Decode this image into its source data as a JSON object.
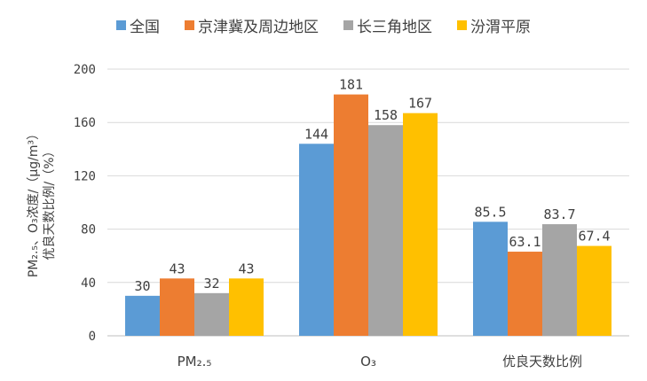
{
  "chart_data": {
    "type": "bar",
    "title": "",
    "xlabel": "",
    "ylabel_line1": "PM₂.₅、O₃浓度/（μg/m³）",
    "ylabel_line2": "优良天数比例/（%）",
    "categories": [
      "PM₂.₅",
      "O₃",
      "优良天数比例"
    ],
    "series": [
      {
        "name": "全国",
        "color": "#5B9BD5",
        "values": [
          30,
          144,
          85.5
        ],
        "labels": [
          "30",
          "144",
          "85.5"
        ]
      },
      {
        "name": "京津冀及周边地区",
        "color": "#ED7D31",
        "values": [
          43,
          181,
          63.1
        ],
        "labels": [
          "43",
          "181",
          "63.1"
        ]
      },
      {
        "name": "长三角地区",
        "color": "#A5A5A5",
        "values": [
          32,
          158,
          83.7
        ],
        "labels": [
          "32",
          "158",
          "83.7"
        ]
      },
      {
        "name": "汾渭平原",
        "color": "#FFC000",
        "values": [
          43,
          167,
          67.4
        ],
        "labels": [
          "43",
          "167",
          "67.4"
        ]
      }
    ],
    "ylim": [
      0,
      200
    ],
    "yticks": [
      0,
      40,
      80,
      120,
      160,
      200
    ],
    "grid": true,
    "legend": "top-center"
  }
}
